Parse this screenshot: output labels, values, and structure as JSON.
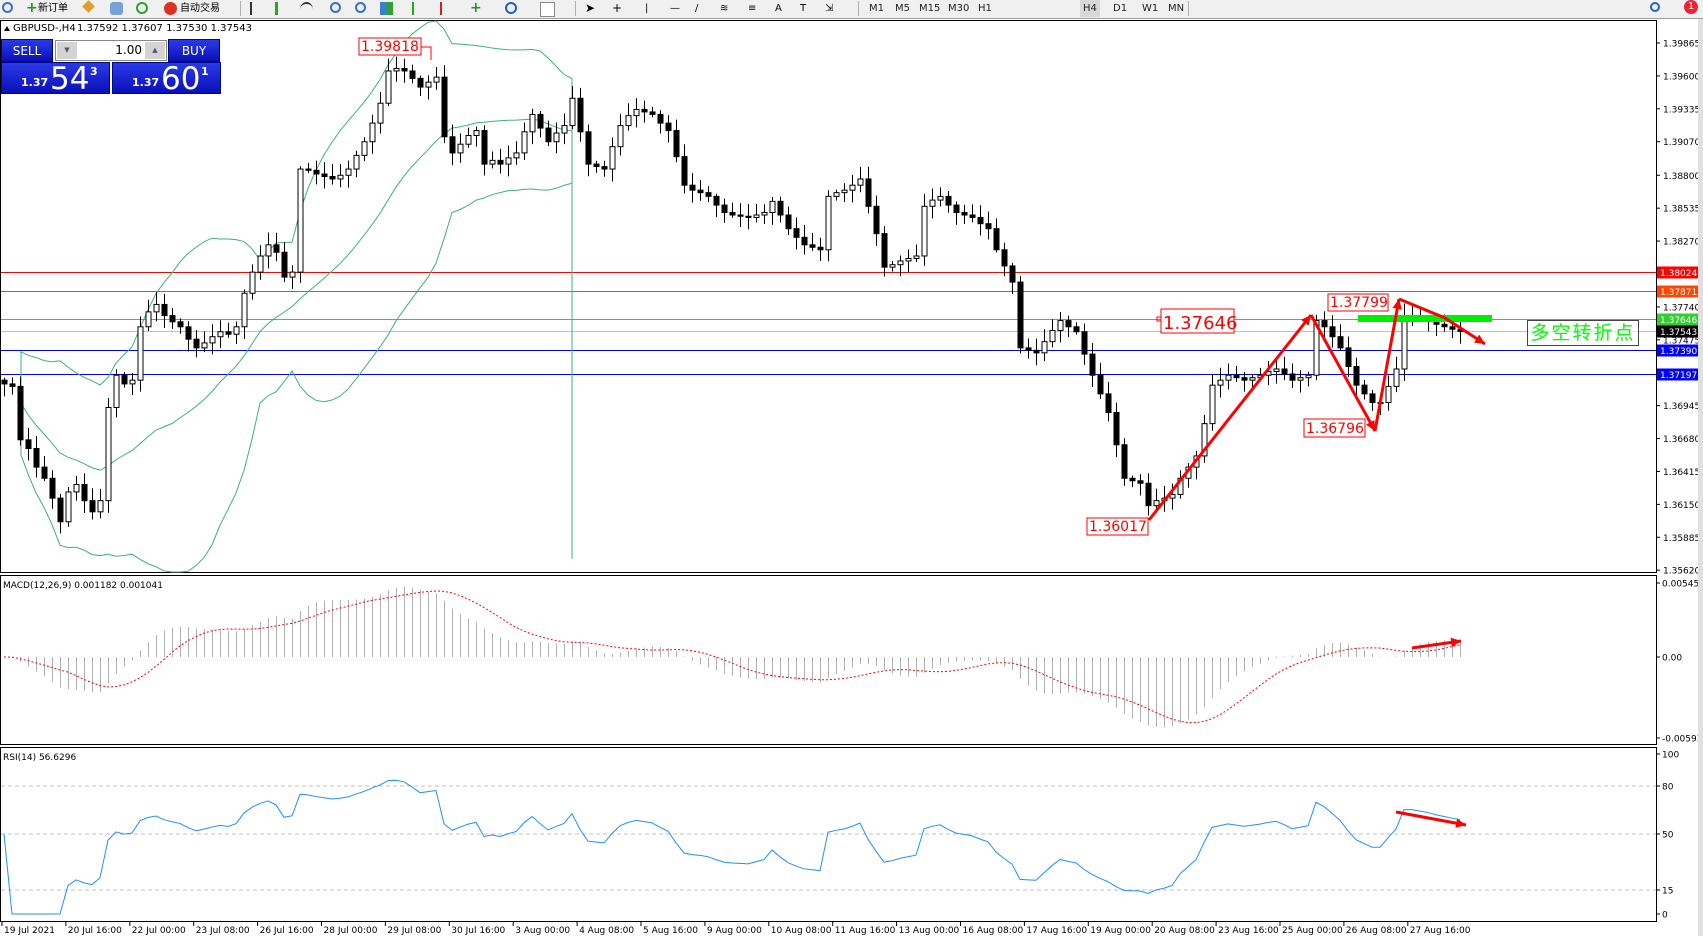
{
  "toolbar": {
    "new_order": "新订单",
    "auto_trading": "自动交易",
    "timeframes": [
      "M1",
      "M5",
      "M15",
      "M30",
      "H1",
      "H4",
      "D1",
      "W1",
      "MN"
    ],
    "active_timeframe": "H4",
    "notification_count": "1"
  },
  "header": {
    "symbol": "GBPUSD-,H4",
    "ohlc": "1.37592 1.37607 1.37530 1.37543"
  },
  "trade_panel": {
    "sell_label": "SELL",
    "buy_label": "BUY",
    "lot": "1.00",
    "sell_prefix": "1.37",
    "sell_big": "54",
    "sell_sup": "3",
    "buy_prefix": "1.37",
    "buy_big": "60",
    "buy_sup": "1"
  },
  "price_axis": [
    "1.39865",
    "1.39600",
    "1.39335",
    "1.39070",
    "1.38800",
    "1.38535",
    "1.38270",
    "1.37740",
    "1.37475",
    "1.36945",
    "1.36680",
    "1.36415",
    "1.36150",
    "1.35885",
    "1.35620"
  ],
  "levels": [
    {
      "price": "1.38024",
      "color": "#ff0000"
    },
    {
      "price": "1.37871",
      "color": "#ff4500"
    },
    {
      "price": "1.37646",
      "color": "#32cd32"
    },
    {
      "price": "1.37543",
      "color": "#000000",
      "line": "#c0c0c0"
    },
    {
      "price": "1.37390",
      "color": "#0000ff"
    },
    {
      "price": "1.37197",
      "color": "#0000ff"
    }
  ],
  "annotations": {
    "high": "1.39818",
    "pivot": "1.37646",
    "peak": "1.37799",
    "trough": "1.36796",
    "low": "1.36017",
    "banner": "多空转折点"
  },
  "time_axis": [
    "19 Jul 2021",
    "20 Jul 16:00",
    "22 Jul 00:00",
    "23 Jul 08:00",
    "26 Jul 16:00",
    "28 Jul 00:00",
    "29 Jul 08:00",
    "30 Jul 16:00",
    "3 Aug 00:00",
    "4 Aug 08:00",
    "5 Aug 16:00",
    "9 Aug 00:00",
    "10 Aug 08:00",
    "11 Aug 16:00",
    "13 Aug 00:00",
    "16 Aug 08:00",
    "17 Aug 16:00",
    "19 Aug 00:00",
    "20 Aug 08:00",
    "23 Aug 16:00",
    "25 Aug 00:00",
    "26 Aug 08:00",
    "27 Aug 16:00"
  ],
  "macd": {
    "label": "MACD(12,26,9) 0.001182 0.001041",
    "axis": [
      "0.005455",
      "0.00",
      "-0.005938"
    ],
    "range": [
      -0.005938,
      0.005455
    ]
  },
  "rsi": {
    "label": "RSI(14) 56.6296",
    "axis": [
      "100",
      "80",
      "50",
      "15",
      "0"
    ],
    "levels": [
      80,
      50,
      15
    ]
  },
  "colors": {
    "bands": "#3cb371",
    "annotation": "#ff0000",
    "rsi_line": "#1e90ff",
    "macd_hist": "#b0b0b0",
    "macd_signal": "#ff0000",
    "pivot_zone": "#00ee00"
  },
  "chart_data": {
    "type": "candlestick",
    "symbol": "GBPUSD",
    "timeframe": "H4",
    "indicators": [
      "Bollinger Bands(20,2)",
      "MACD(12,26,9)",
      "RSI(14)"
    ],
    "ylim": [
      1.3562,
      1.4
    ],
    "close": [
      1.3712,
      1.371,
      1.3667,
      1.366,
      1.3645,
      1.3636,
      1.362,
      1.3601,
      1.3625,
      1.3631,
      1.3618,
      1.3609,
      1.3618,
      1.3693,
      1.3719,
      1.3712,
      1.3715,
      1.3758,
      1.377,
      1.3776,
      1.3767,
      1.3762,
      1.3758,
      1.3748,
      1.3741,
      1.3745,
      1.375,
      1.3754,
      1.3752,
      1.3758,
      1.3785,
      1.3802,
      1.3815,
      1.3824,
      1.3818,
      1.3798,
      1.3802,
      1.3885,
      1.3884,
      1.3881,
      1.3879,
      1.3877,
      1.388,
      1.3885,
      1.3896,
      1.3907,
      1.3922,
      1.3938,
      1.3964,
      1.3966,
      1.3964,
      1.3958,
      1.3951,
      1.3955,
      1.3959,
      1.3911,
      1.3898,
      1.3905,
      1.3912,
      1.3916,
      1.3889,
      1.3892,
      1.3889,
      1.3894,
      1.3898,
      1.3915,
      1.3929,
      1.3918,
      1.3907,
      1.3914,
      1.392,
      1.3942,
      1.3915,
      1.3889,
      1.3887,
      1.3885,
      1.3903,
      1.392,
      1.3928,
      1.3933,
      1.3931,
      1.3929,
      1.3922,
      1.3916,
      1.3895,
      1.3872,
      1.3868,
      1.3866,
      1.3863,
      1.3856,
      1.385,
      1.3848,
      1.3847,
      1.3846,
      1.3848,
      1.385,
      1.3859,
      1.3848,
      1.3837,
      1.383,
      1.3824,
      1.3822,
      1.382,
      1.3863,
      1.3866,
      1.3868,
      1.3872,
      1.3877,
      1.3855,
      1.3833,
      1.3806,
      1.3808,
      1.3811,
      1.3813,
      1.3815,
      1.3855,
      1.386,
      1.3863,
      1.3856,
      1.385,
      1.3848,
      1.3846,
      1.3841,
      1.3837,
      1.382,
      1.3807,
      1.3794,
      1.3741,
      1.3739,
      1.3737,
      1.3746,
      1.3755,
      1.3763,
      1.3758,
      1.3754,
      1.3736,
      1.3719,
      1.3704,
      1.3689,
      1.3663,
      1.3636,
      1.3634,
      1.3632,
      1.3614,
      1.3618,
      1.362,
      1.3623,
      1.3636,
      1.3645,
      1.3654,
      1.368,
      1.3711,
      1.3715,
      1.3719,
      1.3717,
      1.3715,
      1.3717,
      1.3719,
      1.3722,
      1.3724,
      1.372,
      1.3715,
      1.3717,
      1.3719,
      1.3763,
      1.3758,
      1.375,
      1.3741,
      1.3726,
      1.3711,
      1.3704,
      1.3697,
      1.3697,
      1.371,
      1.3724,
      1.3767,
      1.3767,
      1.3765,
      1.3763,
      1.376,
      1.3758,
      1.3756,
      1.37543
    ]
  }
}
